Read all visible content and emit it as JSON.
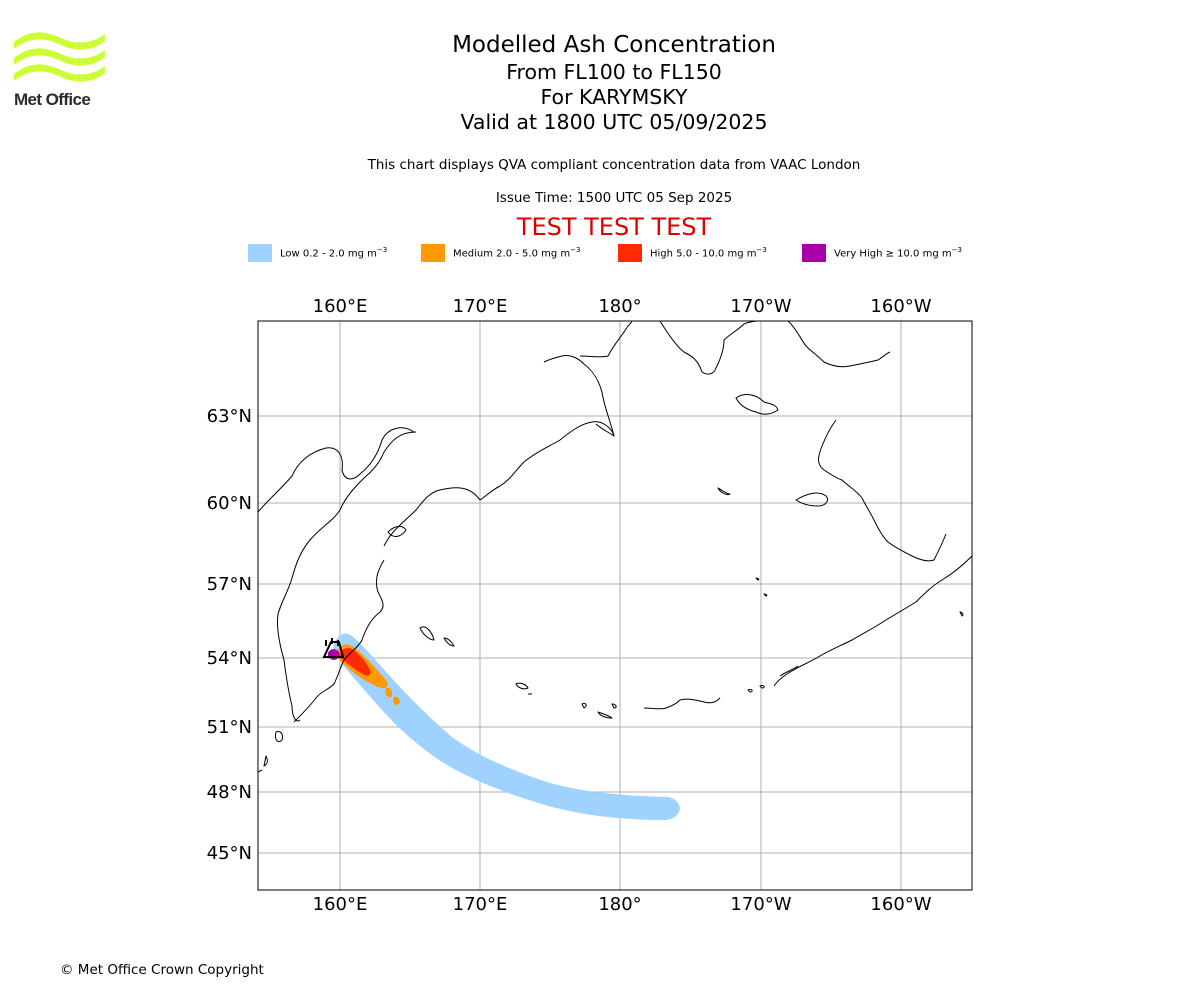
{
  "logo": {
    "name": "Met Office",
    "wave_color": "#ccff33"
  },
  "titles": {
    "main": "Modelled Ash Concentration",
    "levels": "From FL100 to FL150",
    "volcano": "For KARYMSKY",
    "valid": "Valid at 1800 UTC 05/09/2025"
  },
  "subtitle": "This chart displays QVA compliant concentration data from VAAC London",
  "issue_time": "Issue Time: 1500 UTC 05 Sep 2025",
  "test_banner": "TEST TEST TEST",
  "legend": [
    {
      "label": "Low 0.2 - 2.0 mg m",
      "color": "#a0d2ff"
    },
    {
      "label": "Medium 2.0 - 5.0 mg m",
      "color": "#ff9900"
    },
    {
      "label": "High 5.0 - 10.0 mg m",
      "color": "#ff2a00"
    },
    {
      "label": "Very High ≥ 10.0 mg m",
      "color": "#aa00aa"
    }
  ],
  "legend_unit_exponent": "−3",
  "map": {
    "lon_ticks": [
      "160°E",
      "170°E",
      "180°",
      "170°W",
      "160°W"
    ],
    "lat_ticks": [
      "63°N",
      "60°N",
      "57°N",
      "54°N",
      "51°N",
      "48°N",
      "45°N"
    ],
    "extent": {
      "lon_min": 154,
      "lon_max": 205,
      "lat_min": 43.5,
      "lat_max": 66.5
    },
    "volcano": {
      "name": "KARYMSKY",
      "lon": 159.4,
      "lat": 54.05
    }
  },
  "copyright": "© Met Office Crown Copyright"
}
